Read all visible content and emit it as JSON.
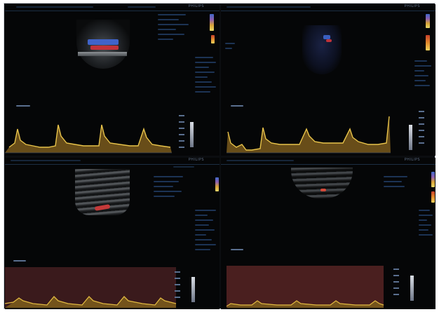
{
  "panels": [
    {
      "brand": "PHILIPS",
      "flow_color": "#b8323c",
      "waveform_color": "#e8c34a"
    },
    {
      "brand": "PHILIPS",
      "flow_color": "#3a5fc0",
      "waveform_color": "#e8c34a"
    },
    {
      "brand": "PHILIPS",
      "flow_color": "#c43a3a",
      "waveform_color": "#e0b840"
    },
    {
      "brand": "PHILIPS",
      "flow_color": "#d24a3a",
      "waveform_color": "#e0b840"
    }
  ],
  "colors": {
    "background": "#050607",
    "frame_border": "#cfd3d8",
    "spectral_background": "#3a1a1c",
    "spectral_speckle": "#6b2a26"
  }
}
